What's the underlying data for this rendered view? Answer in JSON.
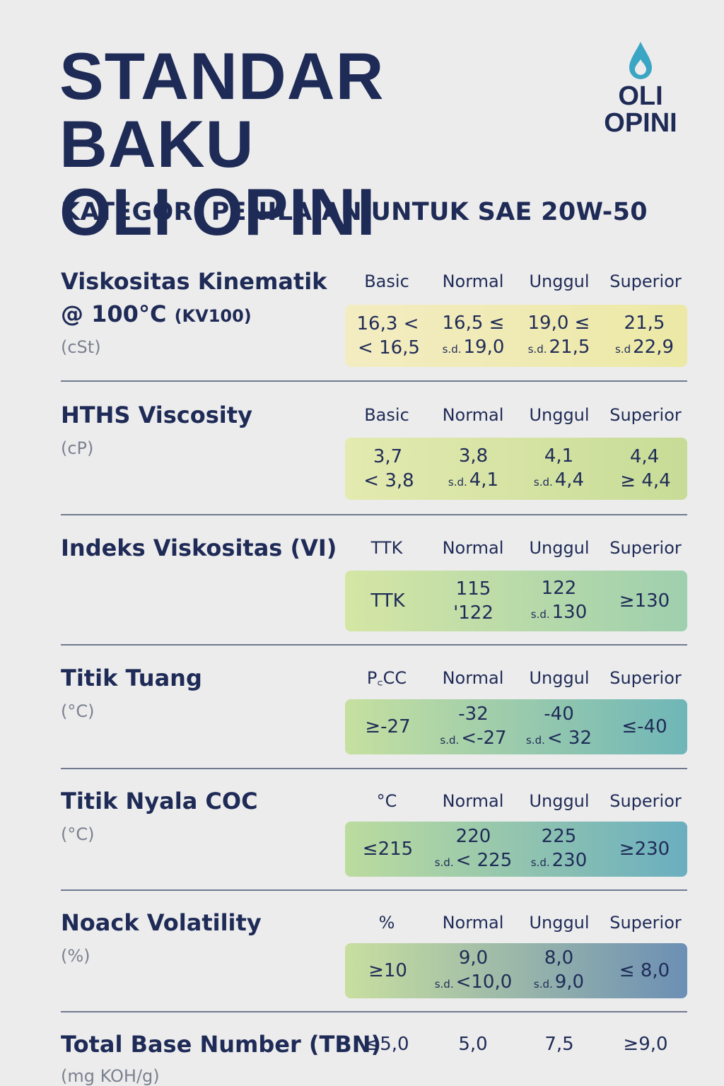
{
  "title_line1": "STANDAR BAKU",
  "title_line2": "OLI OPINI",
  "logo": {
    "icon": "oil-drop-icon",
    "line1": "OLI",
    "line2": "OPINI",
    "color": "#3aa6c4"
  },
  "subtitle": "KATEGORI PENILAIAN UNTUK SAE 20W-50",
  "sections": [
    {
      "label": "Viskositas Kinematik",
      "label2": "@ 100°C",
      "label2_small": "(KV100)",
      "unit": "(cSt)",
      "headers": [
        "Basic",
        "Normal",
        "Unggul",
        "Superior"
      ],
      "cells": [
        {
          "top": "16,3 <",
          "sd": "",
          "bottom": "< 16,5"
        },
        {
          "top": "16,5 ≤",
          "sd": "s.d.",
          "bottom": "19,0"
        },
        {
          "top": "19,0 ≤",
          "sd": "s.d.",
          "bottom": "21,5"
        },
        {
          "top": "21,5",
          "sd": "s.d",
          "bottom": "22,9"
        }
      ]
    },
    {
      "label": "HTHS Viscosity",
      "unit": "(cP)",
      "headers": [
        "Basic",
        "Normal",
        "Unggul",
        "Superior"
      ],
      "cells": [
        {
          "top": "3,7",
          "sd": "",
          "bottom": "< 3,8"
        },
        {
          "top": "3,8",
          "sd": "s.d.",
          "bottom": "4,1"
        },
        {
          "top": "4,1",
          "sd": "s.d.",
          "bottom": "4,4"
        },
        {
          "top": "4,4",
          "sd": "",
          "bottom": "≥ 4,4"
        }
      ]
    },
    {
      "label": "Indeks Viskositas (VI)",
      "unit": "",
      "headers": [
        "TTK",
        "Normal",
        "Unggul",
        "Superior"
      ],
      "cells": [
        {
          "top": "TTK",
          "sd": "",
          "bottom": ""
        },
        {
          "top": "115",
          "sd": "",
          "bottom": "'122"
        },
        {
          "top": "122",
          "sd": "s.d.",
          "bottom": "130"
        },
        {
          "top": "≥130",
          "sd": "",
          "bottom": ""
        }
      ]
    },
    {
      "label": "Titik Tuang",
      "unit": "(°C)",
      "headers": [
        "P꜀CC",
        "Normal",
        "Unggul",
        "Superior"
      ],
      "cells": [
        {
          "top": "≥-27",
          "sd": "",
          "bottom": ""
        },
        {
          "top": "-32",
          "sd": "s.d.",
          "bottom": "<-27"
        },
        {
          "top": "-40",
          "sd": "s.d.",
          "bottom": "< 32"
        },
        {
          "top": "≤-40",
          "sd": "",
          "bottom": ""
        }
      ]
    },
    {
      "label": "Titik Nyala COC",
      "unit": "(°C)",
      "headers": [
        "°C",
        "Normal",
        "Unggul",
        "Superior"
      ],
      "cells": [
        {
          "top": "≤215",
          "sd": "",
          "bottom": ""
        },
        {
          "top": "220",
          "sd": "s.d.",
          "bottom": "< 225"
        },
        {
          "top": "225",
          "sd": "s.d.",
          "bottom": "230"
        },
        {
          "top": "≥230",
          "sd": "",
          "bottom": ""
        }
      ]
    },
    {
      "label": "Noack Volatility",
      "unit": "(%)",
      "headers": [
        "%",
        "Normal",
        "Unggul",
        "Superior"
      ],
      "cells": [
        {
          "top": "≥10",
          "sd": "",
          "bottom": ""
        },
        {
          "top": "9,0",
          "sd": "s.d.",
          "bottom": "<10,0"
        },
        {
          "top": "8,0",
          "sd": "s.d.",
          "bottom": "9,0"
        },
        {
          "top": "≤ 8,0",
          "sd": "",
          "bottom": ""
        }
      ]
    }
  ],
  "tbn": {
    "label": "Total Base Number (TBN)",
    "unit": "(mg KOH/g)",
    "values": [
      "≤5,0",
      "5,0",
      "7,5",
      "≥9,0"
    ]
  }
}
